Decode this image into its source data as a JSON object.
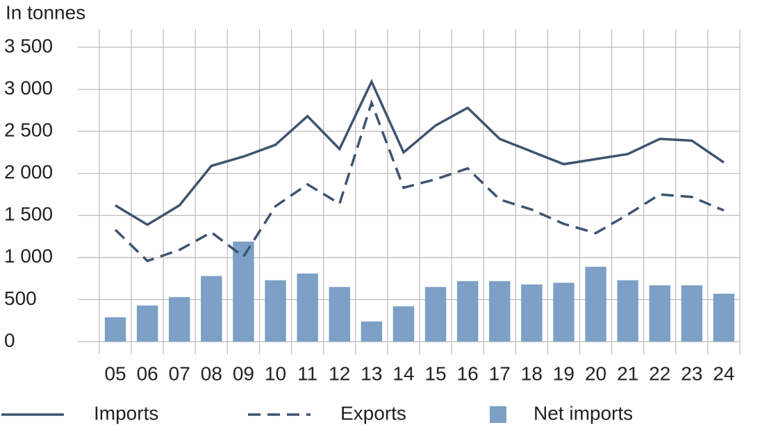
{
  "chart_data": {
    "type": "combo",
    "title": "In tonnes",
    "categories": [
      "05",
      "06",
      "07",
      "08",
      "09",
      "10",
      "11",
      "12",
      "13",
      "14",
      "15",
      "16",
      "17",
      "18",
      "19",
      "20",
      "21",
      "22",
      "23",
      "24"
    ],
    "series": [
      {
        "name": "Imports",
        "type": "line",
        "dash": false,
        "color": "#3d5470",
        "values": [
          1620,
          1390,
          1620,
          2090,
          2200,
          2340,
          2680,
          2290,
          3090,
          2250,
          2570,
          2780,
          2410,
          2260,
          2110,
          2170,
          2230,
          2410,
          2390,
          2130
        ]
      },
      {
        "name": "Exports",
        "type": "line",
        "dash": true,
        "color": "#3d5470",
        "values": [
          1330,
          960,
          1090,
          1300,
          1010,
          1610,
          1870,
          1640,
          2840,
          1830,
          1930,
          2060,
          1690,
          1570,
          1400,
          1290,
          1510,
          1750,
          1720,
          1560
        ]
      },
      {
        "name": "Net imports",
        "type": "bar",
        "color": "#7ca0c6",
        "values": [
          290,
          430,
          530,
          780,
          1190,
          730,
          810,
          650,
          240,
          420,
          650,
          720,
          720,
          680,
          700,
          890,
          730,
          670,
          670,
          570
        ]
      }
    ],
    "ylim": [
      0,
      3500
    ],
    "yticks": [
      0,
      500,
      {
        "value": 1000,
        "label": "1 000"
      },
      {
        "value": 1500,
        "label": "1 500"
      },
      {
        "value": 2000,
        "label": "2 000"
      },
      {
        "value": 2500,
        "label": "2 500"
      },
      {
        "value": 3000,
        "label": "3 000"
      },
      {
        "value": 3500,
        "label": "3 500"
      }
    ],
    "grid": true,
    "legend": "bottom"
  }
}
